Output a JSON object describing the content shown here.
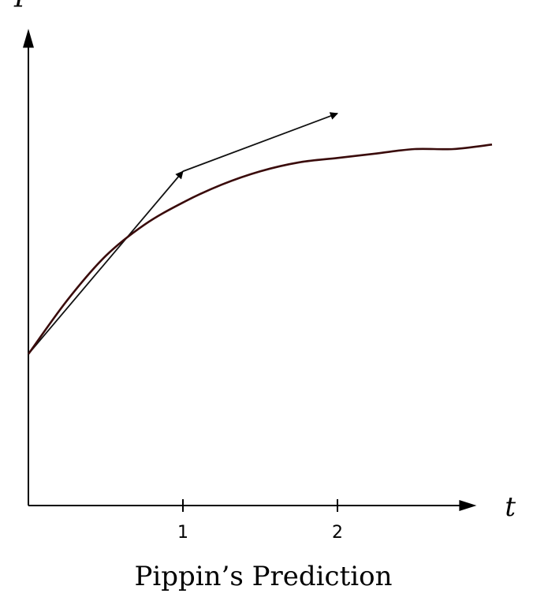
{
  "chart_data": {
    "type": "line",
    "title": "",
    "caption": "Pippin’s Prediction",
    "xlabel": "t",
    "ylabel": "P",
    "xlim": [
      0,
      2.9
    ],
    "ylim": [
      0,
      1.07
    ],
    "xticks": [
      {
        "value": 1,
        "label": "1"
      },
      {
        "value": 2,
        "label": "2"
      }
    ],
    "grid": false,
    "series": [
      {
        "x": [
          0,
          0.25,
          0.5,
          0.75,
          1.0,
          1.25,
          1.5,
          1.75,
          2.0,
          2.25,
          2.5,
          2.75,
          3.0
        ],
        "y": [
          0.34,
          0.46,
          0.56,
          0.63,
          0.68,
          0.72,
          0.75,
          0.77,
          0.78,
          0.79,
          0.8,
          0.8,
          0.81
        ],
        "color": "#3a0b0b"
      }
    ],
    "arrows": [
      {
        "from": [
          0,
          0.34
        ],
        "to": [
          1,
          0.75
        ]
      },
      {
        "from": [
          1,
          0.75
        ],
        "to": [
          2,
          0.88
        ]
      }
    ]
  }
}
